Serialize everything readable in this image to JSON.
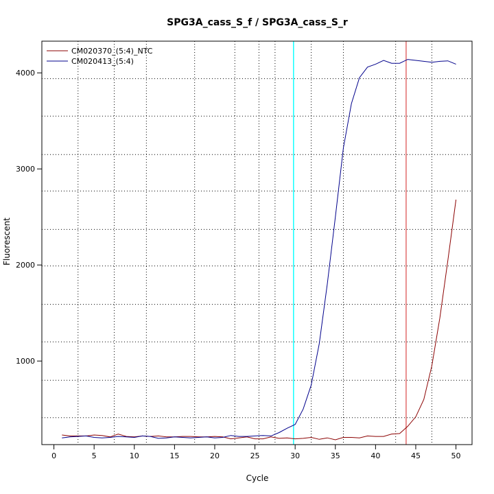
{
  "chart_data": {
    "type": "line",
    "title": "SPG3A_cass_S_f / SPG3A_cass_S_r",
    "xlabel": "Cycle",
    "ylabel": "Fluorescent",
    "xlim": [
      -1.5,
      52
    ],
    "ylim": [
      130,
      4330
    ],
    "x_ticks": [
      0,
      5,
      10,
      15,
      20,
      25,
      30,
      35,
      40,
      45,
      50
    ],
    "x_tick_labels": [
      "0",
      "5",
      "10",
      "15",
      "20",
      "25",
      "30",
      "35",
      "40",
      "45",
      "50"
    ],
    "y_ticks": [
      1000,
      2000,
      3000,
      4000
    ],
    "y_tick_labels": [
      "1000",
      "2000",
      "3000",
      "4000"
    ],
    "grid": true,
    "grid_style": "dotted",
    "vertical_grid_x": [
      3,
      7.5,
      11.5,
      17.5,
      22.5,
      25.5,
      27.5,
      32,
      36,
      42.5,
      47
    ],
    "horizontal_grid_y": [
      410,
      800,
      1200,
      1590,
      1990,
      2370,
      2770,
      3150,
      3550,
      3940
    ],
    "legend_position": "top-left",
    "series": [
      {
        "name": "CM020370_(5:4)_NTC",
        "color": "#8b0000",
        "x": [
          1,
          2,
          3,
          4,
          5,
          6,
          7,
          8,
          9,
          10,
          11,
          12,
          13,
          14,
          15,
          16,
          17,
          18,
          19,
          20,
          21,
          22,
          23,
          24,
          25,
          26,
          27,
          28,
          29,
          30,
          31,
          32,
          33,
          34,
          35,
          36,
          37,
          38,
          39,
          40,
          41,
          42,
          43,
          44,
          45,
          46,
          47,
          48,
          49,
          50
        ],
        "values": [
          230,
          220,
          220,
          220,
          230,
          225,
          210,
          240,
          215,
          210,
          220,
          215,
          220,
          210,
          210,
          215,
          215,
          210,
          210,
          215,
          210,
          190,
          200,
          210,
          190,
          190,
          210,
          195,
          200,
          190,
          195,
          205,
          185,
          200,
          180,
          205,
          205,
          200,
          220,
          215,
          215,
          240,
          245,
          320,
          420,
          600,
          950,
          1450,
          2050,
          2680
        ]
      },
      {
        "name": "CM020413_(5:4)",
        "color": "#00008b",
        "x": [
          1,
          2,
          3,
          4,
          5,
          6,
          7,
          8,
          9,
          10,
          11,
          12,
          13,
          14,
          15,
          16,
          17,
          18,
          19,
          20,
          21,
          22,
          23,
          24,
          25,
          26,
          27,
          28,
          29,
          30,
          31,
          32,
          33,
          34,
          35,
          36,
          37,
          38,
          39,
          40,
          41,
          42,
          43,
          44,
          45,
          46,
          47,
          48,
          49,
          50
        ],
        "values": [
          200,
          210,
          215,
          220,
          205,
          200,
          205,
          215,
          210,
          205,
          220,
          215,
          195,
          200,
          210,
          205,
          200,
          205,
          210,
          200,
          205,
          225,
          215,
          215,
          220,
          225,
          220,
          255,
          300,
          340,
          500,
          750,
          1180,
          1800,
          2500,
          3220,
          3680,
          3950,
          4060,
          4090,
          4130,
          4100,
          4100,
          4140,
          4130,
          4120,
          4110,
          4120,
          4125,
          4090
        ]
      }
    ],
    "threshold_lines": [
      {
        "x": 29.8,
        "color": "#00ffff"
      },
      {
        "x": 43.8,
        "color": "#e06060"
      }
    ]
  }
}
